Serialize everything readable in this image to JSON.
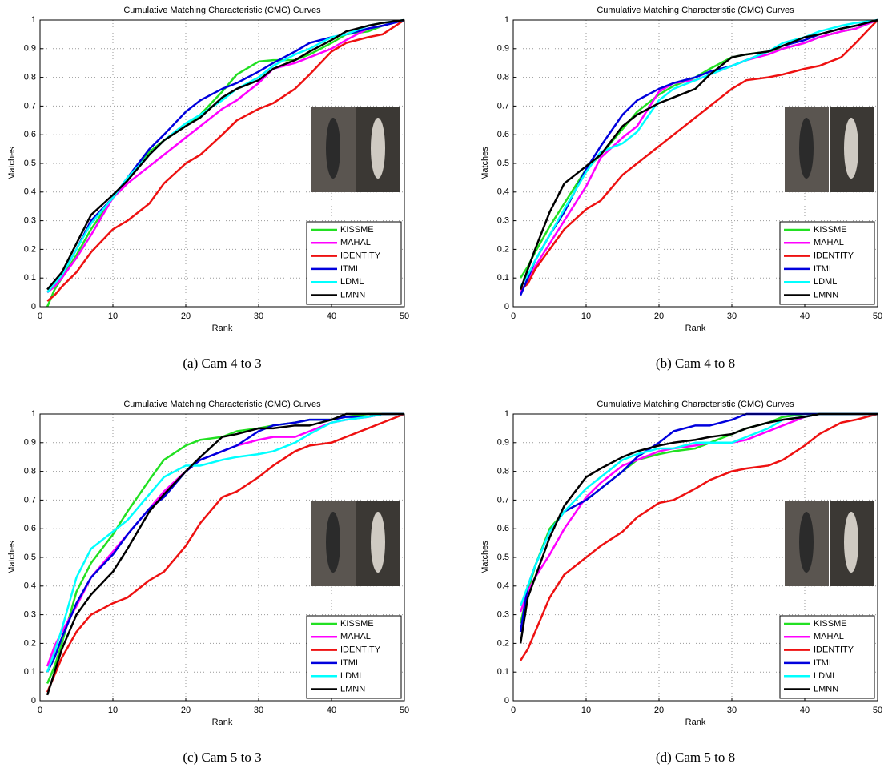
{
  "chart_data": [
    {
      "type": "line",
      "title": "Cumulative Matching Characteristic (CMC) Curves",
      "xlabel": "Rank",
      "ylabel": "Matches",
      "caption": "(a) Cam 4 to 3",
      "x": [
        1,
        2,
        3,
        5,
        7,
        10,
        12,
        15,
        17,
        20,
        22,
        25,
        27,
        30,
        32,
        35,
        37,
        40,
        42,
        45,
        47,
        50
      ],
      "xlim": [
        0,
        50
      ],
      "ylim": [
        0,
        1
      ],
      "xticks": [
        0,
        10,
        20,
        30,
        40,
        50
      ],
      "yticks": [
        0,
        0.1,
        0.2,
        0.3,
        0.4,
        0.5,
        0.6,
        0.7,
        0.8,
        0.9,
        1
      ],
      "grid": true,
      "legend": "lower right",
      "series": [
        {
          "name": "KISSME",
          "color": "#22e022",
          "values": [
            0,
            0.06,
            0.1,
            0.18,
            0.27,
            0.38,
            0.44,
            0.54,
            0.58,
            0.63,
            0.67,
            0.75,
            0.81,
            0.855,
            0.86,
            0.86,
            0.88,
            0.92,
            0.95,
            0.96,
            0.98,
            1.0
          ]
        },
        {
          "name": "MAHAL",
          "color": "#ff00ff",
          "values": [
            0.05,
            0.07,
            0.1,
            0.17,
            0.25,
            0.38,
            0.43,
            0.49,
            0.53,
            0.59,
            0.63,
            0.69,
            0.72,
            0.78,
            0.83,
            0.85,
            0.87,
            0.9,
            0.93,
            0.97,
            0.98,
            1.0
          ]
        },
        {
          "name": "IDENTITY",
          "color": "#ee1111",
          "values": [
            0.02,
            0.04,
            0.07,
            0.12,
            0.19,
            0.27,
            0.3,
            0.36,
            0.43,
            0.5,
            0.53,
            0.6,
            0.65,
            0.69,
            0.71,
            0.76,
            0.81,
            0.89,
            0.92,
            0.94,
            0.95,
            1.0
          ]
        },
        {
          "name": "ITML",
          "color": "#0000dd",
          "values": [
            0.05,
            0.08,
            0.11,
            0.2,
            0.3,
            0.38,
            0.45,
            0.55,
            0.6,
            0.68,
            0.72,
            0.76,
            0.78,
            0.82,
            0.85,
            0.89,
            0.92,
            0.94,
            0.95,
            0.97,
            0.98,
            1.0
          ]
        },
        {
          "name": "LDML",
          "color": "#00ffff",
          "values": [
            0.05,
            0.08,
            0.11,
            0.2,
            0.29,
            0.38,
            0.45,
            0.53,
            0.58,
            0.64,
            0.67,
            0.72,
            0.76,
            0.8,
            0.84,
            0.88,
            0.9,
            0.94,
            0.95,
            0.98,
            0.99,
            1.0
          ]
        },
        {
          "name": "LMNN",
          "color": "#000000",
          "values": [
            0.06,
            0.09,
            0.12,
            0.22,
            0.32,
            0.39,
            0.44,
            0.53,
            0.58,
            0.63,
            0.66,
            0.73,
            0.76,
            0.79,
            0.83,
            0.86,
            0.89,
            0.93,
            0.96,
            0.98,
            0.99,
            1.0
          ]
        }
      ]
    },
    {
      "type": "line",
      "title": "Cumulative Matching Characteristic (CMC) Curves",
      "xlabel": "Rank",
      "ylabel": "Matches",
      "caption": "(b) Cam 4 to 8",
      "x": [
        1,
        2,
        3,
        5,
        7,
        10,
        12,
        15,
        17,
        20,
        22,
        25,
        27,
        30,
        32,
        35,
        37,
        40,
        42,
        45,
        47,
        50
      ],
      "xlim": [
        0,
        50
      ],
      "ylim": [
        0,
        1
      ],
      "xticks": [
        0,
        10,
        20,
        30,
        40,
        50
      ],
      "yticks": [
        0,
        0.1,
        0.2,
        0.3,
        0.4,
        0.5,
        0.6,
        0.7,
        0.8,
        0.9,
        1
      ],
      "grid": true,
      "legend": "lower right",
      "series": [
        {
          "name": "KISSME",
          "color": "#22e022",
          "values": [
            0.1,
            0.14,
            0.19,
            0.28,
            0.36,
            0.48,
            0.53,
            0.62,
            0.68,
            0.74,
            0.77,
            0.8,
            0.83,
            0.87,
            0.88,
            0.89,
            0.9,
            0.92,
            0.94,
            0.96,
            0.97,
            1.0
          ]
        },
        {
          "name": "MAHAL",
          "color": "#ff00ff",
          "values": [
            0.05,
            0.09,
            0.14,
            0.22,
            0.3,
            0.42,
            0.52,
            0.59,
            0.63,
            0.75,
            0.78,
            0.79,
            0.81,
            0.84,
            0.86,
            0.88,
            0.9,
            0.92,
            0.94,
            0.96,
            0.97,
            1.0
          ]
        },
        {
          "name": "IDENTITY",
          "color": "#ee1111",
          "values": [
            0.06,
            0.08,
            0.13,
            0.2,
            0.27,
            0.34,
            0.37,
            0.46,
            0.5,
            0.56,
            0.6,
            0.66,
            0.7,
            0.76,
            0.79,
            0.8,
            0.81,
            0.83,
            0.84,
            0.87,
            0.92,
            1.0
          ]
        },
        {
          "name": "ITML",
          "color": "#0000dd",
          "values": [
            0.04,
            0.1,
            0.16,
            0.25,
            0.33,
            0.48,
            0.56,
            0.67,
            0.72,
            0.76,
            0.78,
            0.8,
            0.82,
            0.84,
            0.86,
            0.89,
            0.91,
            0.93,
            0.95,
            0.97,
            0.98,
            1.0
          ]
        },
        {
          "name": "LDML",
          "color": "#00ffff",
          "values": [
            0.07,
            0.11,
            0.16,
            0.25,
            0.34,
            0.47,
            0.54,
            0.57,
            0.61,
            0.72,
            0.76,
            0.79,
            0.81,
            0.84,
            0.86,
            0.89,
            0.92,
            0.94,
            0.96,
            0.98,
            0.99,
            1.0
          ]
        },
        {
          "name": "LMNN",
          "color": "#000000",
          "values": [
            0.06,
            0.13,
            0.2,
            0.33,
            0.43,
            0.49,
            0.53,
            0.63,
            0.67,
            0.71,
            0.73,
            0.76,
            0.81,
            0.87,
            0.88,
            0.89,
            0.91,
            0.94,
            0.95,
            0.97,
            0.98,
            1.0
          ]
        }
      ]
    },
    {
      "type": "line",
      "title": "Cumulative Matching Characteristic (CMC) Curves",
      "xlabel": "Rank",
      "ylabel": "Matches",
      "caption": "(c) Cam 5 to 3",
      "x": [
        1,
        2,
        3,
        5,
        7,
        10,
        12,
        15,
        17,
        20,
        22,
        25,
        27,
        30,
        32,
        35,
        37,
        40,
        42,
        45,
        47,
        50
      ],
      "xlim": [
        0,
        50
      ],
      "ylim": [
        0,
        1
      ],
      "xticks": [
        0,
        10,
        20,
        30,
        40,
        50
      ],
      "yticks": [
        0,
        0.1,
        0.2,
        0.3,
        0.4,
        0.5,
        0.6,
        0.7,
        0.8,
        0.9,
        1
      ],
      "grid": true,
      "legend": "lower right",
      "series": [
        {
          "name": "KISSME",
          "color": "#22e022",
          "values": [
            0.06,
            0.12,
            0.2,
            0.38,
            0.48,
            0.58,
            0.66,
            0.77,
            0.84,
            0.89,
            0.91,
            0.92,
            0.94,
            0.95,
            0.96,
            0.97,
            0.98,
            0.98,
            0.99,
            1.0,
            1.0,
            1.0
          ]
        },
        {
          "name": "MAHAL",
          "color": "#ff00ff",
          "values": [
            0.12,
            0.19,
            0.24,
            0.33,
            0.43,
            0.52,
            0.58,
            0.67,
            0.73,
            0.8,
            0.84,
            0.87,
            0.89,
            0.91,
            0.92,
            0.92,
            0.94,
            0.97,
            0.98,
            0.99,
            1.0,
            1.0
          ]
        },
        {
          "name": "IDENTITY",
          "color": "#ee1111",
          "values": [
            0.03,
            0.09,
            0.15,
            0.24,
            0.3,
            0.34,
            0.36,
            0.42,
            0.45,
            0.54,
            0.62,
            0.71,
            0.73,
            0.78,
            0.82,
            0.87,
            0.89,
            0.9,
            0.92,
            0.95,
            0.97,
            1.0
          ]
        },
        {
          "name": "ITML",
          "color": "#0000dd",
          "values": [
            0.1,
            0.15,
            0.22,
            0.34,
            0.43,
            0.51,
            0.58,
            0.67,
            0.71,
            0.8,
            0.84,
            0.87,
            0.89,
            0.94,
            0.96,
            0.97,
            0.98,
            0.98,
            0.99,
            0.99,
            1.0,
            1.0
          ]
        },
        {
          "name": "LDML",
          "color": "#00ffff",
          "values": [
            0.1,
            0.17,
            0.25,
            0.43,
            0.53,
            0.59,
            0.63,
            0.72,
            0.78,
            0.82,
            0.82,
            0.84,
            0.85,
            0.86,
            0.87,
            0.9,
            0.93,
            0.97,
            0.98,
            0.99,
            1.0,
            1.0
          ]
        },
        {
          "name": "LMNN",
          "color": "#000000",
          "values": [
            0.02,
            0.1,
            0.18,
            0.3,
            0.37,
            0.45,
            0.53,
            0.66,
            0.72,
            0.8,
            0.85,
            0.92,
            0.93,
            0.95,
            0.95,
            0.96,
            0.96,
            0.98,
            1.0,
            1.0,
            1.0,
            1.0
          ]
        }
      ]
    },
    {
      "type": "line",
      "title": "Cumulative Matching Characteristic (CMC) Curves",
      "xlabel": "Rank",
      "ylabel": "Matches",
      "caption": "(d) Cam 5 to 8",
      "x": [
        1,
        2,
        3,
        5,
        7,
        10,
        12,
        15,
        17,
        20,
        22,
        25,
        27,
        30,
        32,
        35,
        37,
        40,
        42,
        45,
        47,
        50
      ],
      "xlim": [
        0,
        50
      ],
      "ylim": [
        0,
        1
      ],
      "xticks": [
        0,
        10,
        20,
        30,
        40,
        50
      ],
      "yticks": [
        0,
        0.1,
        0.2,
        0.3,
        0.4,
        0.5,
        0.6,
        0.7,
        0.8,
        0.9,
        1
      ],
      "grid": true,
      "legend": "lower right",
      "series": [
        {
          "name": "KISSME",
          "color": "#22e022",
          "values": [
            0.27,
            0.38,
            0.47,
            0.6,
            0.66,
            0.7,
            0.74,
            0.8,
            0.84,
            0.86,
            0.87,
            0.88,
            0.9,
            0.93,
            0.95,
            0.97,
            0.99,
            1.0,
            1.0,
            1.0,
            1.0,
            1.0
          ]
        },
        {
          "name": "MAHAL",
          "color": "#ff00ff",
          "values": [
            0.31,
            0.38,
            0.43,
            0.51,
            0.6,
            0.71,
            0.76,
            0.82,
            0.84,
            0.87,
            0.88,
            0.89,
            0.9,
            0.9,
            0.91,
            0.94,
            0.96,
            0.99,
            1.0,
            1.0,
            1.0,
            1.0
          ]
        },
        {
          "name": "IDENTITY",
          "color": "#ee1111",
          "values": [
            0.14,
            0.18,
            0.24,
            0.36,
            0.44,
            0.5,
            0.54,
            0.59,
            0.64,
            0.69,
            0.7,
            0.74,
            0.77,
            0.8,
            0.81,
            0.82,
            0.84,
            0.89,
            0.93,
            0.97,
            0.98,
            1.0
          ]
        },
        {
          "name": "ITML",
          "color": "#0000dd",
          "values": [
            0.24,
            0.4,
            0.47,
            0.59,
            0.66,
            0.7,
            0.74,
            0.8,
            0.85,
            0.9,
            0.94,
            0.96,
            0.96,
            0.98,
            1.0,
            1.0,
            1.0,
            1.0,
            1.0,
            1.0,
            1.0,
            1.0
          ]
        },
        {
          "name": "LDML",
          "color": "#00ffff",
          "values": [
            0.33,
            0.4,
            0.47,
            0.59,
            0.66,
            0.74,
            0.78,
            0.84,
            0.86,
            0.88,
            0.88,
            0.9,
            0.9,
            0.9,
            0.92,
            0.95,
            0.98,
            0.99,
            1.0,
            1.0,
            1.0,
            1.0
          ]
        },
        {
          "name": "LMNN",
          "color": "#000000",
          "values": [
            0.2,
            0.36,
            0.43,
            0.57,
            0.68,
            0.78,
            0.81,
            0.85,
            0.87,
            0.89,
            0.9,
            0.91,
            0.92,
            0.93,
            0.95,
            0.97,
            0.98,
            0.99,
            1.0,
            1.0,
            1.0,
            1.0
          ]
        }
      ]
    }
  ]
}
